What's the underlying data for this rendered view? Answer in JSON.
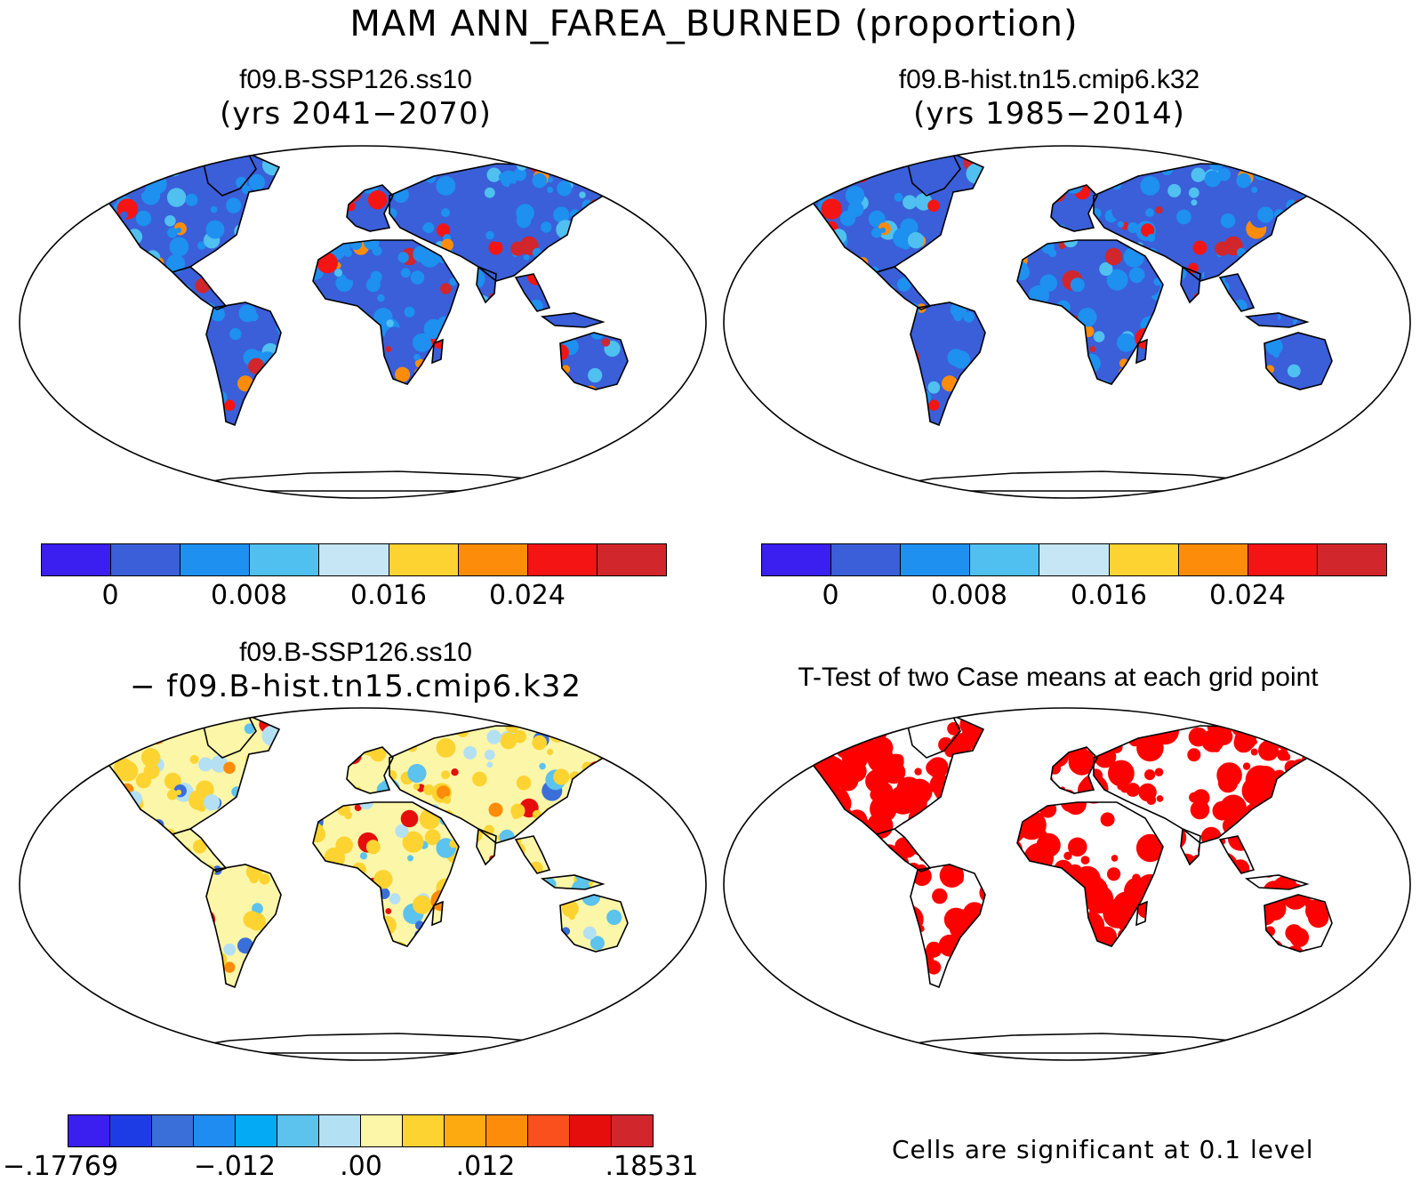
{
  "title": "MAM ANN_FAREA_BURNED (proportion)",
  "panels": [
    {
      "line1": "f09.B-SSP126.ss10",
      "line2": "(yrs 2041−2070)",
      "field": "future"
    },
    {
      "line1": "f09.B-hist.tn15.cmip6.k32",
      "line2": "(yrs 1985−2014)",
      "field": "hist"
    },
    {
      "line1": "f09.B-SSP126.ss10",
      "line2": "− f09.B-hist.tn15.cmip6.k32",
      "field": "diff"
    },
    {
      "line1": "T-Test of two Case means at each grid point",
      "line2": "",
      "field": "ttest"
    }
  ],
  "colorbars": {
    "abs": {
      "colors": [
        "#3b1ef0",
        "#3a5fd9",
        "#1e90f0",
        "#4fc0f0",
        "#c6e6f6",
        "#fcd331",
        "#fc8c0a",
        "#f51414",
        "#d1262c"
      ],
      "labels": [
        "0",
        "0.008",
        "0.016",
        "0.024"
      ]
    },
    "diff": {
      "colors": [
        "#3b1ef0",
        "#1e3ce6",
        "#3a6fd9",
        "#1e8cf0",
        "#05aaf5",
        "#5cc2ee",
        "#b4e0f4",
        "#fcf6a8",
        "#fcd331",
        "#fcaa0f",
        "#fc8c0a",
        "#fa501e",
        "#e60d0d",
        "#d1262c"
      ],
      "labels": [
        ".17769",
        "−.012",
        ".00",
        ".012",
        ".18531"
      ]
    }
  },
  "significance_note": "Cells are significant at 0.1 level",
  "colors": {
    "land_outline": "#000000",
    "significant": "#ff0000"
  }
}
